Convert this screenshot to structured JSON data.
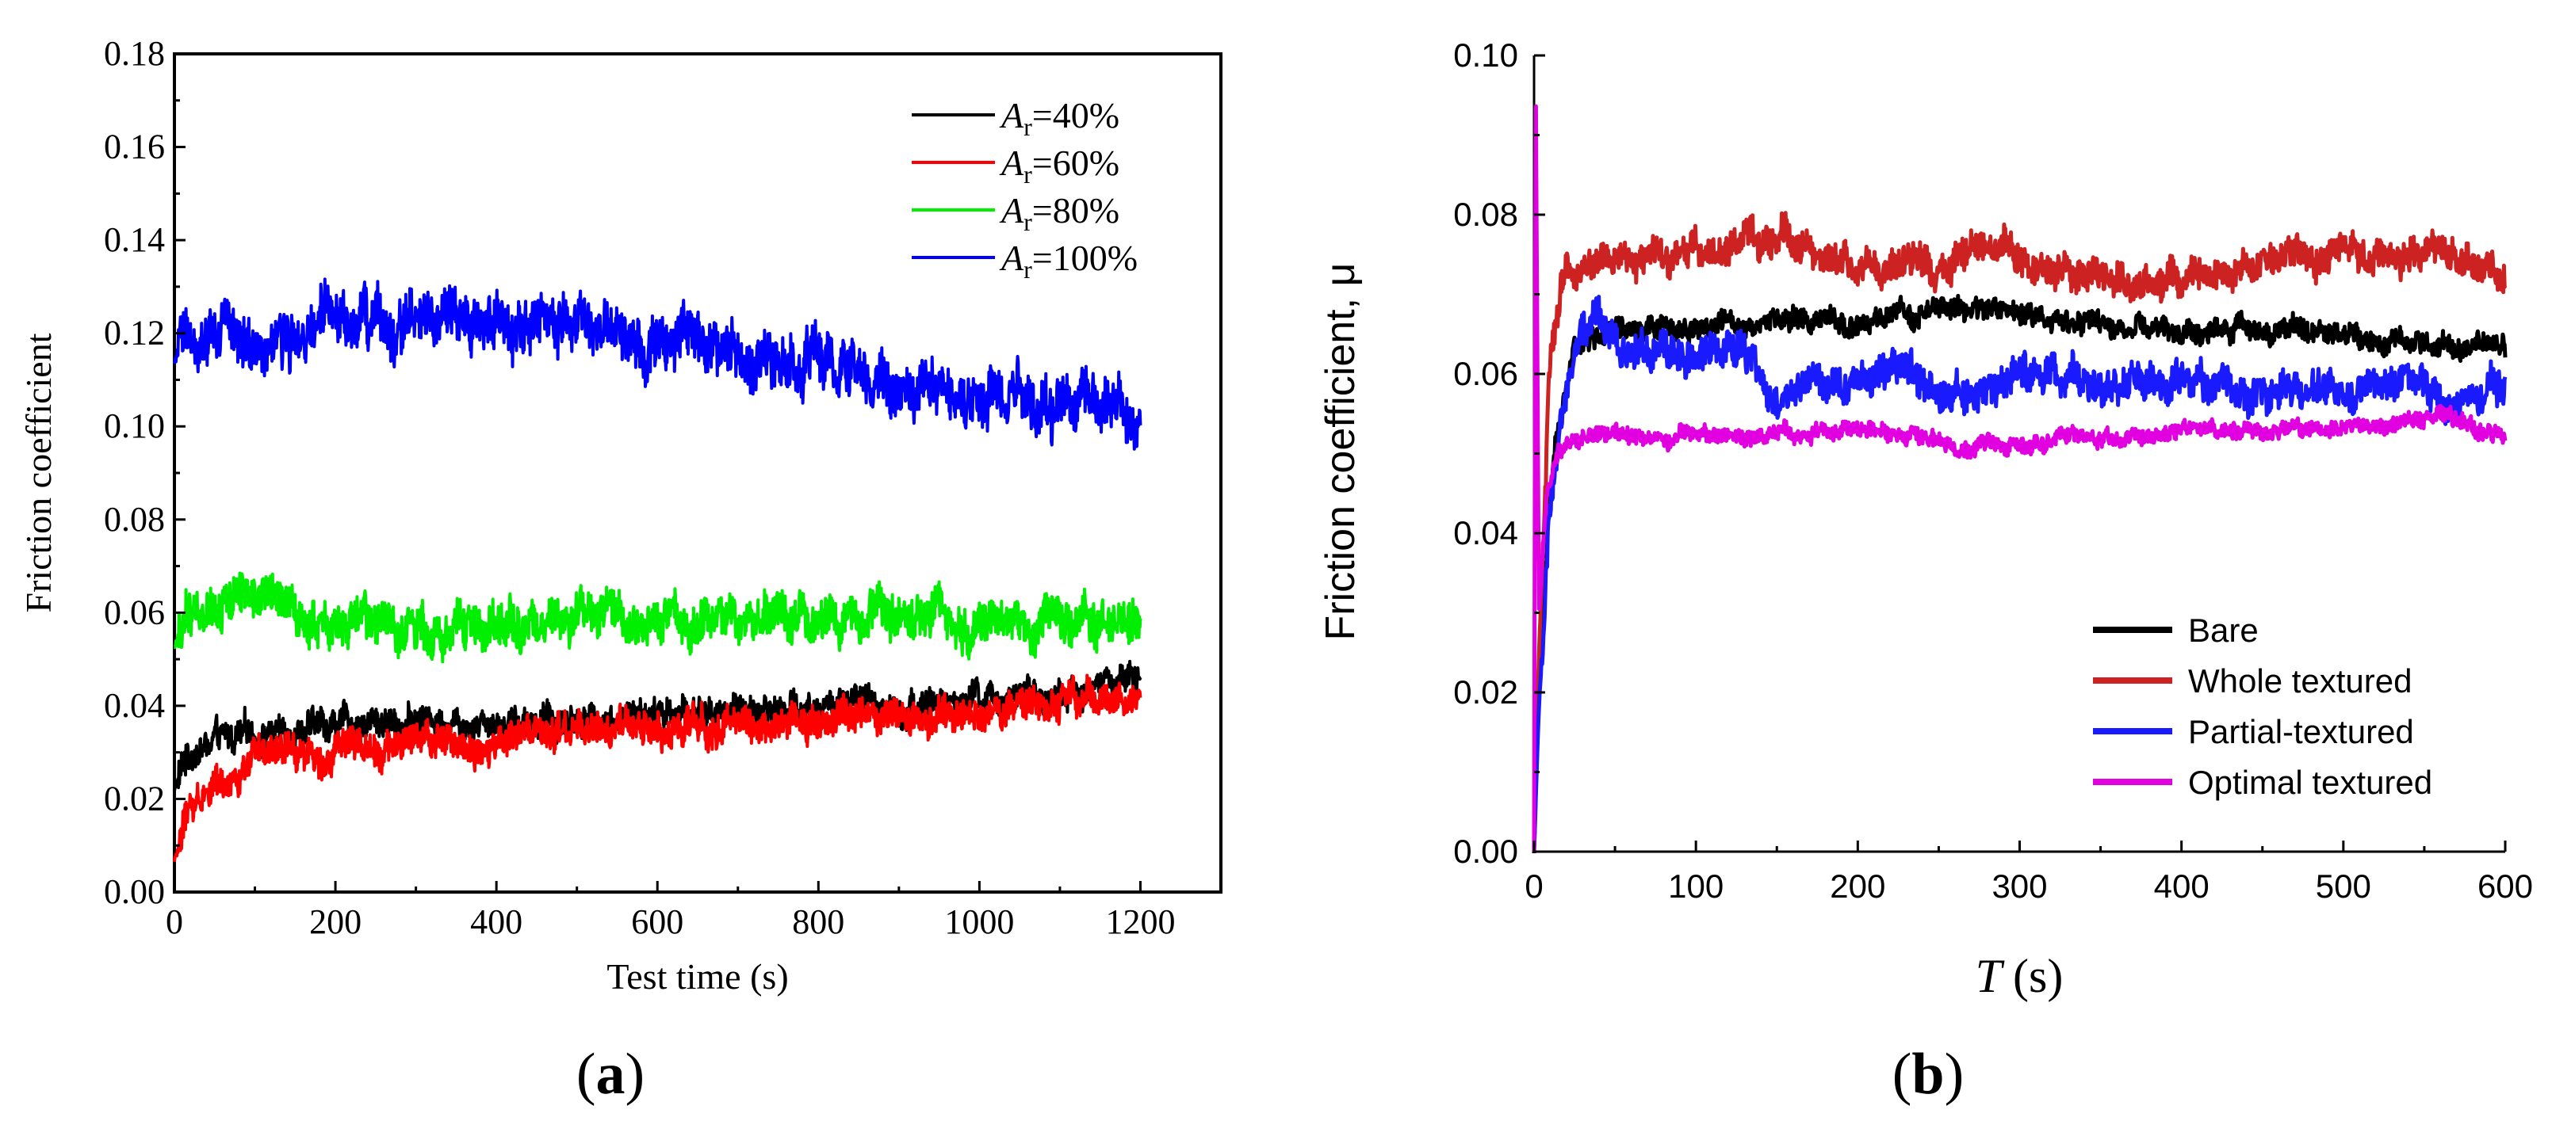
{
  "chart_data": [
    {
      "panel": "a",
      "panel_label": "a",
      "type": "line",
      "title": "",
      "xlabel": "Test time (s)",
      "ylabel": "Friction coefficient",
      "xlim": [
        0,
        1300
      ],
      "ylim": [
        0,
        0.18
      ],
      "xticks": [
        0,
        200,
        400,
        600,
        800,
        1000,
        1200
      ],
      "xtick_labels": [
        "0",
        "200",
        "400",
        "600",
        "800",
        "1000",
        "1200"
      ],
      "yticks": [
        0,
        0.02,
        0.04,
        0.06,
        0.08,
        0.1,
        0.12,
        0.14,
        0.16,
        0.18
      ],
      "ytick_labels": [
        "0.00",
        "0.02",
        "0.04",
        "0.06",
        "0.08",
        "0.10",
        "0.12",
        "0.14",
        "0.16",
        "0.18"
      ],
      "legend_position": "top-right",
      "series": [
        {
          "name": "Ar=40%",
          "legend_var": "A",
          "legend_sub": "r",
          "legend_value": "=40%",
          "color": "#000000",
          "noise": 0.0028,
          "x": [
            0,
            15,
            50,
            100,
            150,
            200,
            300,
            400,
            500,
            600,
            700,
            800,
            900,
            1000,
            1100,
            1150,
            1200
          ],
          "y": [
            0.022,
            0.029,
            0.032,
            0.034,
            0.035,
            0.036,
            0.037,
            0.037,
            0.037,
            0.038,
            0.039,
            0.04,
            0.04,
            0.041,
            0.042,
            0.044,
            0.047
          ]
        },
        {
          "name": "Ar=60%",
          "legend_var": "A",
          "legend_sub": "r",
          "legend_value": "=60%",
          "color": "#ff0000",
          "noise": 0.003,
          "x": [
            0,
            5,
            15,
            40,
            100,
            200,
            300,
            400,
            500,
            600,
            700,
            800,
            900,
            1000,
            1100,
            1200
          ],
          "y": [
            0.007,
            0.009,
            0.017,
            0.022,
            0.028,
            0.031,
            0.032,
            0.032,
            0.034,
            0.035,
            0.036,
            0.037,
            0.037,
            0.039,
            0.04,
            0.041
          ]
        },
        {
          "name": "Ar=80%",
          "legend_var": "A",
          "legend_sub": "r",
          "legend_value": "=80%",
          "color": "#00ee00",
          "noise": 0.004,
          "x": [
            0,
            10,
            30,
            60,
            100,
            140,
            160,
            190,
            230,
            300,
            400,
            500,
            600,
            700,
            800,
            900,
            1000,
            1100,
            1200
          ],
          "y": [
            0.052,
            0.058,
            0.061,
            0.063,
            0.064,
            0.062,
            0.058,
            0.057,
            0.057,
            0.057,
            0.057,
            0.058,
            0.058,
            0.059,
            0.059,
            0.059,
            0.059,
            0.059,
            0.059
          ]
        },
        {
          "name": "Ar=100%",
          "legend_var": "A",
          "legend_sub": "r",
          "legend_value": "=100%",
          "color": "#0000ff",
          "noise": 0.005,
          "x": [
            0,
            15,
            60,
            100,
            150,
            200,
            300,
            400,
            500,
            600,
            700,
            800,
            850,
            900,
            1000,
            1100,
            1200
          ],
          "y": [
            0.113,
            0.121,
            0.12,
            0.118,
            0.119,
            0.122,
            0.122,
            0.122,
            0.121,
            0.119,
            0.116,
            0.112,
            0.109,
            0.108,
            0.107,
            0.105,
            0.104
          ]
        }
      ]
    },
    {
      "panel": "b",
      "panel_label": "b",
      "type": "line",
      "title": "",
      "xlabel_var": "T",
      "xlabel_unit": "(s)",
      "ylabel": "Friction coefficient, μ",
      "xlim": [
        0,
        600
      ],
      "ylim": [
        0,
        0.1
      ],
      "xticks": [
        0,
        100,
        200,
        300,
        400,
        500,
        600
      ],
      "xtick_labels": [
        "0",
        "100",
        "200",
        "300",
        "400",
        "500",
        "600"
      ],
      "yticks": [
        0,
        0.02,
        0.04,
        0.06,
        0.08,
        0.1
      ],
      "ytick_labels": [
        "0.00",
        "0.02",
        "0.04",
        "0.06",
        "0.08",
        "0.10"
      ],
      "legend_position": "bottom-right",
      "series": [
        {
          "name": "Bare",
          "color": "#000000",
          "noise": 0.0012,
          "x": [
            0,
            3,
            12,
            25,
            40,
            60,
            100,
            150,
            200,
            250,
            300,
            350,
            400,
            450,
            500,
            550,
            600
          ],
          "y": [
            0.0,
            0.022,
            0.05,
            0.063,
            0.065,
            0.065,
            0.066,
            0.067,
            0.066,
            0.068,
            0.068,
            0.066,
            0.065,
            0.066,
            0.065,
            0.064,
            0.064
          ]
        },
        {
          "name": "Whole textured",
          "color": "#cc2222",
          "noise": 0.0018,
          "x": [
            0,
            3,
            10,
            20,
            40,
            80,
            120,
            160,
            200,
            250,
            290,
            320,
            360,
            420,
            460,
            500,
            560,
            600
          ],
          "y": [
            0.0,
            0.025,
            0.062,
            0.073,
            0.074,
            0.075,
            0.076,
            0.077,
            0.073,
            0.074,
            0.076,
            0.072,
            0.072,
            0.071,
            0.075,
            0.075,
            0.075,
            0.073
          ]
        },
        {
          "name": "Partial-textured",
          "color": "#1a1aff",
          "noise": 0.002,
          "x": [
            0,
            3,
            10,
            25,
            40,
            60,
            100,
            130,
            145,
            170,
            220,
            260,
            275,
            300,
            350,
            400,
            450,
            500,
            540,
            570,
            600
          ],
          "y": [
            0.0,
            0.018,
            0.045,
            0.065,
            0.067,
            0.063,
            0.062,
            0.063,
            0.056,
            0.059,
            0.06,
            0.059,
            0.056,
            0.061,
            0.058,
            0.059,
            0.058,
            0.058,
            0.059,
            0.057,
            0.059
          ]
        },
        {
          "name": "Optimal textured",
          "color": "#e000e0",
          "noise": 0.0009,
          "x": [
            0,
            1,
            3,
            8,
            15,
            20,
            60,
            120,
            200,
            270,
            350,
            420,
            480,
            540,
            560,
            600
          ],
          "y": [
            0.0,
            0.099,
            0.03,
            0.045,
            0.051,
            0.052,
            0.052,
            0.052,
            0.053,
            0.051,
            0.052,
            0.053,
            0.053,
            0.054,
            0.055,
            0.052
          ]
        }
      ]
    }
  ]
}
